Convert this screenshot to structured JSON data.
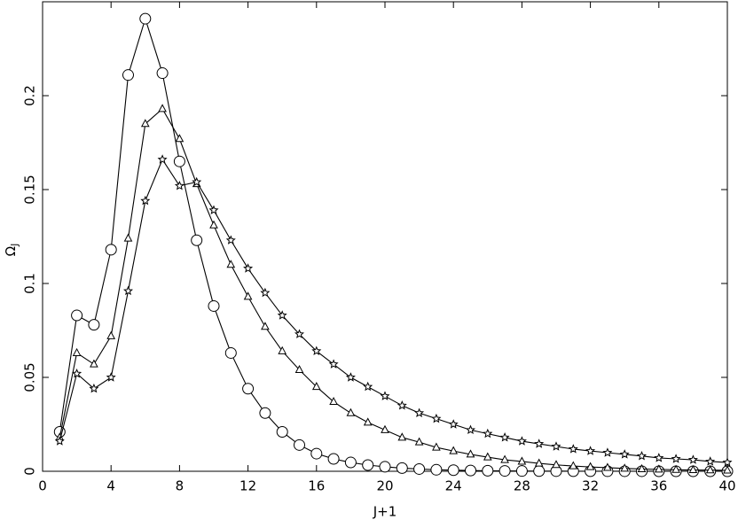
{
  "chart_data": {
    "type": "line",
    "xlabel": "J+1",
    "ylabel": {
      "base": "Ω",
      "sub": "J"
    },
    "x": [
      1,
      2,
      3,
      4,
      5,
      6,
      7,
      8,
      9,
      10,
      11,
      12,
      13,
      14,
      15,
      16,
      17,
      18,
      19,
      20,
      21,
      22,
      23,
      24,
      25,
      26,
      27,
      28,
      29,
      30,
      31,
      32,
      33,
      34,
      35,
      36,
      37,
      38,
      39,
      40
    ],
    "series": [
      {
        "marker": "circle",
        "color": "#000000",
        "values": [
          0.021,
          0.083,
          0.078,
          0.118,
          0.211,
          0.241,
          0.212,
          0.165,
          0.123,
          0.088,
          0.063,
          0.044,
          0.031,
          0.021,
          0.014,
          0.0094,
          0.0066,
          0.0047,
          0.0033,
          0.0024,
          0.0017,
          0.0012,
          0.0008,
          0.0006,
          0.0004,
          0.0003,
          0.0002,
          0.00015,
          0.0001,
          8e-05,
          6e-05,
          4e-05,
          3e-05,
          2e-05,
          2e-05,
          1e-05,
          1e-05,
          1e-05,
          1e-05,
          1e-05
        ]
      },
      {
        "marker": "triangle",
        "color": "#000000",
        "values": [
          0.018,
          0.063,
          0.057,
          0.072,
          0.124,
          0.185,
          0.193,
          0.177,
          0.153,
          0.131,
          0.11,
          0.093,
          0.077,
          0.064,
          0.054,
          0.045,
          0.037,
          0.031,
          0.026,
          0.022,
          0.018,
          0.0155,
          0.0127,
          0.0108,
          0.009,
          0.0075,
          0.0061,
          0.0052,
          0.0042,
          0.0034,
          0.0028,
          0.0023,
          0.0019,
          0.0015,
          0.0012,
          0.001,
          0.0008,
          0.0007,
          0.0006,
          0.0005
        ]
      },
      {
        "marker": "star",
        "color": "#000000",
        "values": [
          0.016,
          0.052,
          0.044,
          0.05,
          0.096,
          0.144,
          0.166,
          0.152,
          0.154,
          0.139,
          0.123,
          0.108,
          0.095,
          0.083,
          0.073,
          0.064,
          0.057,
          0.05,
          0.045,
          0.04,
          0.035,
          0.031,
          0.028,
          0.025,
          0.022,
          0.02,
          0.018,
          0.016,
          0.0146,
          0.0132,
          0.0118,
          0.0108,
          0.0099,
          0.009,
          0.0081,
          0.0071,
          0.0066,
          0.0061,
          0.0052,
          0.0047
        ]
      }
    ],
    "xlim": [
      0,
      40
    ],
    "xticks": [
      0,
      4,
      8,
      12,
      16,
      20,
      24,
      28,
      32,
      36,
      40
    ],
    "ylim": [
      0,
      0.25
    ],
    "yticks": [
      0,
      0.05,
      0.1,
      0.15,
      0.2
    ],
    "grid": false
  }
}
